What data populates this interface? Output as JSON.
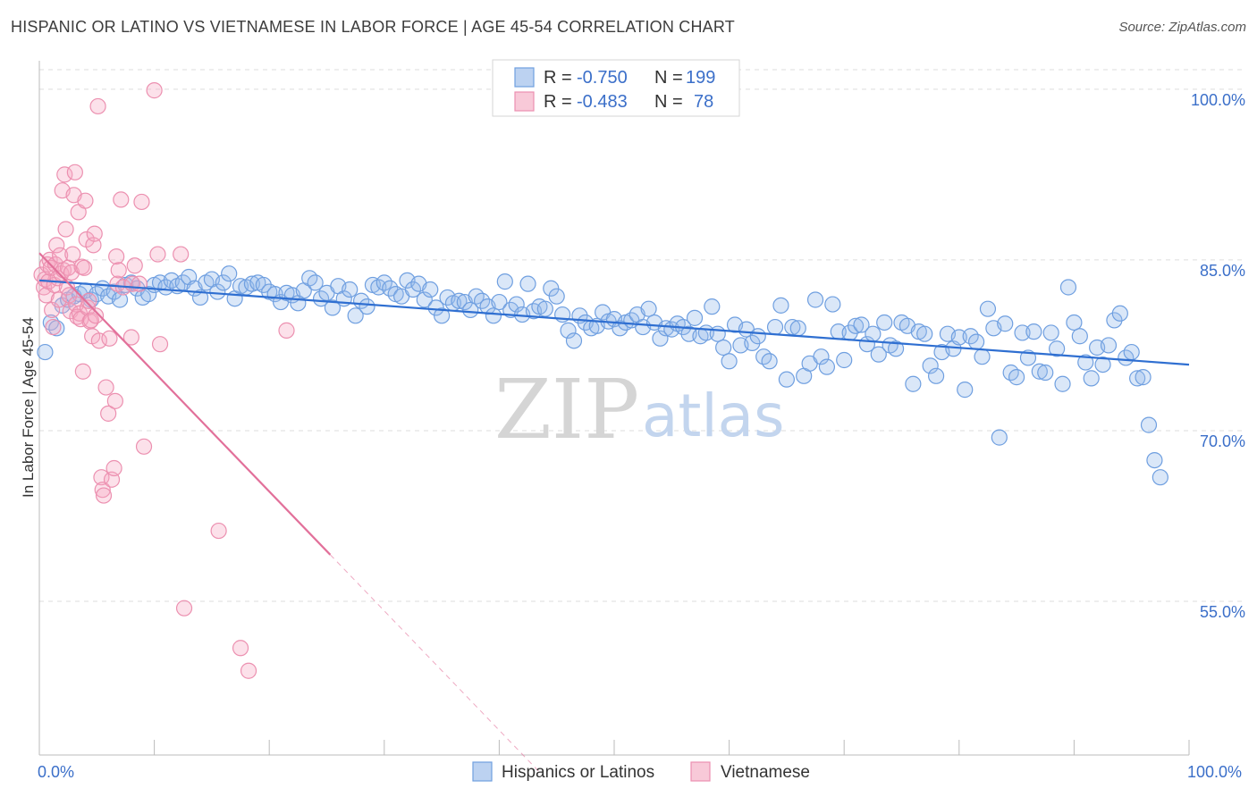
{
  "title": "HISPANIC OR LATINO VS VIETNAMESE IN LABOR FORCE | AGE 45-54 CORRELATION CHART",
  "source": "Source: ZipAtlas.com",
  "watermark": {
    "zip": "ZIP",
    "atlas": "atlas"
  },
  "colors": {
    "blue": "#6f9fe0",
    "blue_fill": "rgba(150,185,235,0.35)",
    "blue_line": "#2f6fd1",
    "pink": "#ec90b0",
    "pink_fill": "rgba(245,170,195,0.35)",
    "pink_line": "#e2709a",
    "grid": "#dddddd",
    "axis_text": "#3b6fc9"
  },
  "legend": {
    "rows": [
      {
        "r_label": "R =",
        "r_value": "-0.750",
        "n_label": "N =",
        "n_value": "199",
        "series": "blue"
      },
      {
        "r_label": "R =",
        "r_value": "-0.483",
        "n_label": "N =",
        "n_value": "78",
        "series": "pink"
      }
    ]
  },
  "bottom_legend": [
    {
      "label": "Hispanics or Latinos",
      "series": "blue"
    },
    {
      "label": "Vietnamese",
      "series": "pink"
    }
  ],
  "chart_data": {
    "type": "scatter",
    "title": "HISPANIC OR LATINO VS VIETNAMESE IN LABOR FORCE | AGE 45-54 CORRELATION CHART",
    "xlabel": "",
    "ylabel": "In Labor Force | Age 45-54",
    "xlim": [
      0,
      100
    ],
    "ylim": [
      41.5,
      102.5
    ],
    "x_tick_labels": [
      "0.0%",
      "100.0%"
    ],
    "y_ticks": [
      55,
      70,
      85,
      100
    ],
    "y_tick_labels": [
      "55.0%",
      "70.0%",
      "85.0%",
      "100.0%"
    ],
    "grid": "horizontal dashed",
    "legend_position": "top-center",
    "series": [
      {
        "name": "Hispanics or Latinos",
        "color": "#6f9fe0",
        "trend": {
          "x0": 0,
          "y0": 83.2,
          "x1": 100,
          "y1": 75.8
        },
        "points": [
          [
            0.5,
            76.9
          ],
          [
            1,
            79.5
          ],
          [
            1.5,
            79
          ],
          [
            2,
            81
          ],
          [
            2.5,
            81.5
          ],
          [
            3,
            81.8
          ],
          [
            3.5,
            82
          ],
          [
            4,
            82.3
          ],
          [
            4.5,
            81.5
          ],
          [
            5,
            82
          ],
          [
            5.5,
            82.5
          ],
          [
            6,
            81.8
          ],
          [
            6.5,
            82.2
          ],
          [
            7,
            81.5
          ],
          [
            7.5,
            82.8
          ],
          [
            8,
            83
          ],
          [
            8.5,
            82.5
          ],
          [
            9,
            81.7
          ],
          [
            9.5,
            82
          ],
          [
            10,
            82.8
          ],
          [
            10.5,
            83
          ],
          [
            11,
            82.6
          ],
          [
            11.5,
            83.2
          ],
          [
            12,
            82.7
          ],
          [
            12.5,
            83
          ],
          [
            13,
            83.5
          ],
          [
            13.5,
            82.5
          ],
          [
            14,
            81.7
          ],
          [
            14.5,
            83
          ],
          [
            15,
            83.3
          ],
          [
            15.5,
            82.2
          ],
          [
            16,
            83
          ],
          [
            16.5,
            83.8
          ],
          [
            17,
            81.6
          ],
          [
            17.5,
            82.7
          ],
          [
            18,
            82.6
          ],
          [
            18.5,
            82.9
          ],
          [
            19,
            83
          ],
          [
            19.5,
            82.8
          ],
          [
            20,
            82.2
          ],
          [
            20.5,
            82
          ],
          [
            21,
            81.3
          ],
          [
            21.5,
            82.1
          ],
          [
            22,
            81.9
          ],
          [
            22.5,
            81.2
          ],
          [
            23,
            82.3
          ],
          [
            23.5,
            83.4
          ],
          [
            24,
            83
          ],
          [
            24.5,
            81.6
          ],
          [
            25,
            82.1
          ],
          [
            25.5,
            80.8
          ],
          [
            26,
            82.7
          ],
          [
            26.5,
            81.6
          ],
          [
            27,
            82.4
          ],
          [
            27.5,
            80.1
          ],
          [
            28,
            81.4
          ],
          [
            28.5,
            80.9
          ],
          [
            29,
            82.8
          ],
          [
            29.5,
            82.6
          ],
          [
            30,
            83
          ],
          [
            30.5,
            82.5
          ],
          [
            31,
            82
          ],
          [
            31.5,
            81.8
          ],
          [
            32,
            83.2
          ],
          [
            32.5,
            82.4
          ],
          [
            33,
            82.9
          ],
          [
            33.5,
            81.5
          ],
          [
            34,
            82.4
          ],
          [
            34.5,
            80.8
          ],
          [
            35,
            80.1
          ],
          [
            35.5,
            81.7
          ],
          [
            36,
            81.2
          ],
          [
            36.5,
            81.4
          ],
          [
            37,
            81.3
          ],
          [
            37.5,
            80.6
          ],
          [
            38,
            81.8
          ],
          [
            38.5,
            81.4
          ],
          [
            39,
            80.9
          ],
          [
            39.5,
            80.1
          ],
          [
            40,
            81.3
          ],
          [
            40.5,
            83.1
          ],
          [
            41,
            80.6
          ],
          [
            41.5,
            81.1
          ],
          [
            42,
            80.2
          ],
          [
            42.5,
            82.9
          ],
          [
            43,
            80.5
          ],
          [
            43.5,
            80.9
          ],
          [
            44,
            80.7
          ],
          [
            44.5,
            82.5
          ],
          [
            45,
            81.8
          ],
          [
            45.5,
            80.2
          ],
          [
            46,
            78.8
          ],
          [
            46.5,
            77.9
          ],
          [
            47,
            80.1
          ],
          [
            47.5,
            79.5
          ],
          [
            48,
            79
          ],
          [
            48.5,
            79.2
          ],
          [
            49,
            80.4
          ],
          [
            49.5,
            79.6
          ],
          [
            50,
            79.8
          ],
          [
            50.5,
            79
          ],
          [
            51,
            79.5
          ],
          [
            51.5,
            79.7
          ],
          [
            52,
            80.2
          ],
          [
            52.5,
            79.1
          ],
          [
            53,
            80.7
          ],
          [
            53.5,
            79.5
          ],
          [
            54,
            78.1
          ],
          [
            54.5,
            79
          ],
          [
            55,
            78.9
          ],
          [
            55.5,
            79.4
          ],
          [
            56,
            79.1
          ],
          [
            56.5,
            78.5
          ],
          [
            57,
            79.9
          ],
          [
            57.5,
            78.3
          ],
          [
            58,
            78.6
          ],
          [
            58.5,
            80.9
          ],
          [
            59,
            78.5
          ],
          [
            59.5,
            77.3
          ],
          [
            60,
            76.1
          ],
          [
            60.5,
            79.3
          ],
          [
            61,
            77.5
          ],
          [
            61.5,
            78.9
          ],
          [
            62,
            77.7
          ],
          [
            62.5,
            78.3
          ],
          [
            63,
            76.5
          ],
          [
            63.5,
            76.1
          ],
          [
            64,
            79.1
          ],
          [
            64.5,
            81
          ],
          [
            65,
            74.5
          ],
          [
            65.5,
            79.1
          ],
          [
            66,
            79
          ],
          [
            66.5,
            74.8
          ],
          [
            67,
            75.9
          ],
          [
            67.5,
            81.5
          ],
          [
            68,
            76.5
          ],
          [
            68.5,
            75.6
          ],
          [
            69,
            81.1
          ],
          [
            69.5,
            78.7
          ],
          [
            70,
            76.2
          ],
          [
            70.5,
            78.6
          ],
          [
            71,
            79.2
          ],
          [
            71.5,
            79.3
          ],
          [
            72,
            77.6
          ],
          [
            72.5,
            78.5
          ],
          [
            73,
            76.7
          ],
          [
            73.5,
            79.5
          ],
          [
            74,
            77.5
          ],
          [
            74.5,
            77.2
          ],
          [
            75,
            79.5
          ],
          [
            75.5,
            79.2
          ],
          [
            76,
            74.1
          ],
          [
            76.5,
            78.7
          ],
          [
            77,
            78.5
          ],
          [
            77.5,
            75.7
          ],
          [
            78,
            74.8
          ],
          [
            78.5,
            76.9
          ],
          [
            79,
            78.5
          ],
          [
            79.5,
            77.2
          ],
          [
            80,
            78.2
          ],
          [
            80.5,
            73.6
          ],
          [
            81,
            78.3
          ],
          [
            81.5,
            77.8
          ],
          [
            82,
            76.5
          ],
          [
            82.5,
            80.7
          ],
          [
            83,
            79
          ],
          [
            83.5,
            69.4
          ],
          [
            84,
            79.4
          ],
          [
            84.5,
            75.1
          ],
          [
            85,
            74.7
          ],
          [
            85.5,
            78.6
          ],
          [
            86,
            76.4
          ],
          [
            86.5,
            78.7
          ],
          [
            87,
            75.2
          ],
          [
            87.5,
            75.1
          ],
          [
            88,
            78.6
          ],
          [
            88.5,
            77.2
          ],
          [
            89,
            74.1
          ],
          [
            89.5,
            82.6
          ],
          [
            90,
            79.5
          ],
          [
            90.5,
            78.3
          ],
          [
            91,
            76
          ],
          [
            91.5,
            74.6
          ],
          [
            92,
            77.3
          ],
          [
            92.5,
            75.8
          ],
          [
            93,
            77.5
          ],
          [
            93.5,
            79.7
          ],
          [
            94,
            80.3
          ],
          [
            94.5,
            76.4
          ],
          [
            95,
            76.9
          ],
          [
            95.5,
            74.6
          ],
          [
            96,
            74.7
          ],
          [
            96.5,
            70.5
          ],
          [
            97,
            67.4
          ],
          [
            97.5,
            65.9
          ]
        ]
      },
      {
        "name": "Vietnamese",
        "color": "#ec90b0",
        "trend": {
          "x0": 0,
          "y0": 85.6,
          "x1": 25.3,
          "y1": 59.1,
          "dash_to_x": 43.5,
          "dash_to_y": 40.0
        },
        "points": [
          [
            0.2,
            83.7
          ],
          [
            0.4,
            82.6
          ],
          [
            0.5,
            83.3
          ],
          [
            0.6,
            81.9
          ],
          [
            0.7,
            84.6
          ],
          [
            0.8,
            83.1
          ],
          [
            0.9,
            85
          ],
          [
            1,
            84.3
          ],
          [
            1.1,
            80.6
          ],
          [
            1.2,
            79.1
          ],
          [
            1.3,
            82.8
          ],
          [
            1.4,
            84.6
          ],
          [
            1.5,
            86.3
          ],
          [
            1.6,
            83.4
          ],
          [
            1.7,
            81.5
          ],
          [
            1.8,
            85.4
          ],
          [
            1.9,
            83.8
          ],
          [
            2,
            91.1
          ],
          [
            2.1,
            84.1
          ],
          [
            2.2,
            92.5
          ],
          [
            2.3,
            87.7
          ],
          [
            2.4,
            82.6
          ],
          [
            2.5,
            84.3
          ],
          [
            2.6,
            81.9
          ],
          [
            2.7,
            80.5
          ],
          [
            2.8,
            83.9
          ],
          [
            2.9,
            85.5
          ],
          [
            3,
            90.7
          ],
          [
            3.1,
            92.7
          ],
          [
            3.2,
            81.1
          ],
          [
            3.3,
            80
          ],
          [
            3.4,
            89.2
          ],
          [
            3.5,
            80.3
          ],
          [
            3.6,
            79.8
          ],
          [
            3.7,
            84.4
          ],
          [
            3.8,
            75.2
          ],
          [
            3.9,
            84.3
          ],
          [
            4,
            90.2
          ],
          [
            4.1,
            86.8
          ],
          [
            4.2,
            80.8
          ],
          [
            4.3,
            81.4
          ],
          [
            4.4,
            79.6
          ],
          [
            4.5,
            79.7
          ],
          [
            4.6,
            78.3
          ],
          [
            4.7,
            86.3
          ],
          [
            4.8,
            87.3
          ],
          [
            4.9,
            80.1
          ],
          [
            5.1,
            98.5
          ],
          [
            5.2,
            77.9
          ],
          [
            5.4,
            65.9
          ],
          [
            5.5,
            64.8
          ],
          [
            5.6,
            64.3
          ],
          [
            5.8,
            73.8
          ],
          [
            6,
            71.5
          ],
          [
            6.1,
            78.1
          ],
          [
            6.3,
            65.7
          ],
          [
            6.5,
            66.7
          ],
          [
            6.6,
            72.6
          ],
          [
            6.7,
            85.3
          ],
          [
            6.8,
            82.9
          ],
          [
            6.9,
            84.1
          ],
          [
            7.1,
            90.3
          ],
          [
            7.3,
            82.6
          ],
          [
            8,
            78.2
          ],
          [
            8.1,
            82.9
          ],
          [
            8.3,
            84.5
          ],
          [
            8.7,
            82.9
          ],
          [
            8.9,
            90.1
          ],
          [
            9.1,
            68.6
          ],
          [
            10,
            99.9
          ],
          [
            10.3,
            85.5
          ],
          [
            10.5,
            77.6
          ],
          [
            12.3,
            85.5
          ],
          [
            12.6,
            54.4
          ],
          [
            15.6,
            61.2
          ],
          [
            17.5,
            50.9
          ],
          [
            18.2,
            48.9
          ],
          [
            21.5,
            78.8
          ]
        ]
      }
    ]
  }
}
